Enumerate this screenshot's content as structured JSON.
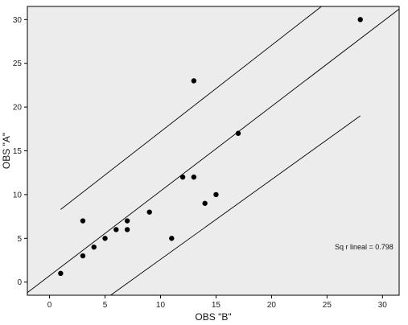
{
  "chart_data": {
    "type": "scatter",
    "title": "",
    "xlabel": "OBS \"B\"",
    "ylabel": "OBS \"A\"",
    "xlim": [
      -2,
      31.5
    ],
    "ylim": [
      -1.5,
      31.5
    ],
    "xticks": [
      0,
      5,
      10,
      15,
      20,
      25,
      30
    ],
    "yticks": [
      0,
      5,
      10,
      15,
      20,
      25,
      30
    ],
    "grid": false,
    "plot_background": "#ececec",
    "point_color": "#000000",
    "points": [
      {
        "x": 1,
        "y": 1
      },
      {
        "x": 3,
        "y": 3
      },
      {
        "x": 3,
        "y": 7
      },
      {
        "x": 4,
        "y": 4
      },
      {
        "x": 5,
        "y": 5
      },
      {
        "x": 6,
        "y": 6
      },
      {
        "x": 7,
        "y": 6
      },
      {
        "x": 7,
        "y": 7
      },
      {
        "x": 9,
        "y": 8
      },
      {
        "x": 11,
        "y": 5
      },
      {
        "x": 12,
        "y": 12
      },
      {
        "x": 13,
        "y": 12
      },
      {
        "x": 13,
        "y": 23
      },
      {
        "x": 14,
        "y": 9
      },
      {
        "x": 15,
        "y": 10
      },
      {
        "x": 17,
        "y": 17
      },
      {
        "x": 28,
        "y": 30
      }
    ],
    "fit_line": {
      "x": [
        -2,
        31.5
      ],
      "y": [
        -1.2,
        31.2
      ]
    },
    "upper_band": {
      "x": [
        1,
        24.5
      ],
      "y": [
        8.3,
        31.5
      ]
    },
    "lower_band": {
      "x": [
        5.5,
        28
      ],
      "y": [
        -1.5,
        19
      ]
    },
    "annotation": "Sq r lineal = 0.798"
  }
}
